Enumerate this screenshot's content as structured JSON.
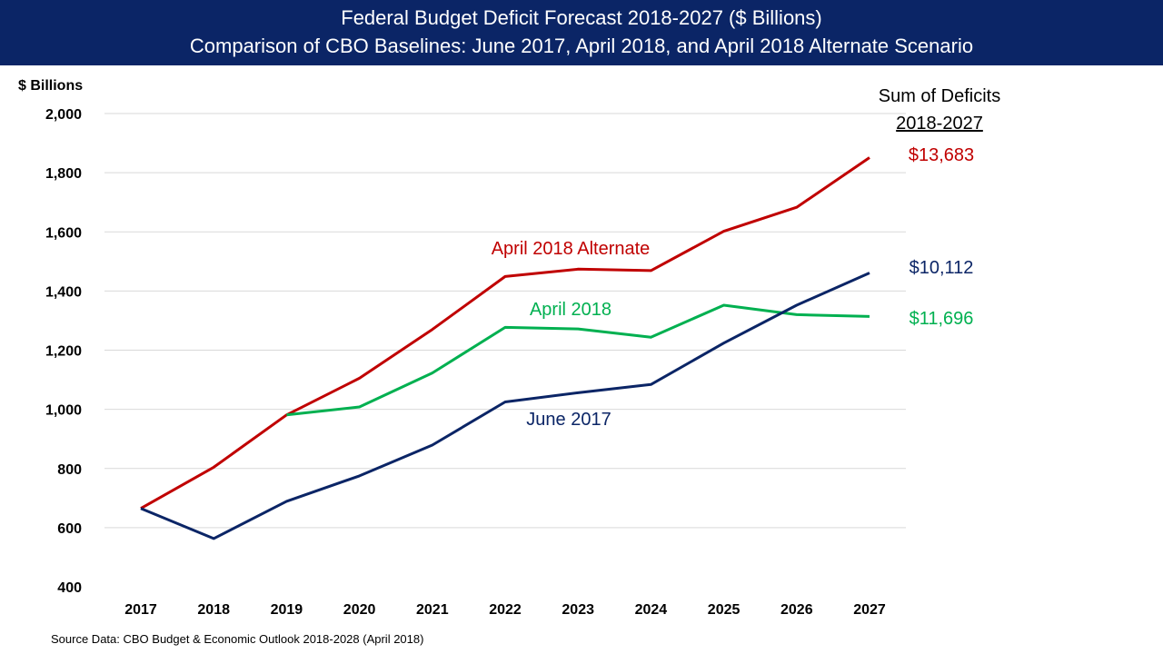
{
  "header": {
    "title_line1": "Federal Budget Deficit Forecast 2018-2027 ($ Billions)",
    "title_line2": "Comparison of CBO Baselines:  June 2017, April 2018, and April 2018 Alternate Scenario",
    "background_color": "#0b2566"
  },
  "sum_box": {
    "line1": "Sum of Deficits",
    "line2": "2018-2027"
  },
  "source_note": "Source Data:  CBO Budget & Economic Outlook 2018-2028 (April 2018)",
  "chart_data": {
    "type": "line",
    "title": "Federal Budget Deficit Forecast 2018-2027 ($ Billions)",
    "subtitle": "Comparison of CBO Baselines:  June 2017, April 2018, and April 2018 Alternate Scenario",
    "xlabel": "",
    "ylabel": "$ Billions",
    "ylim": [
      400,
      2000
    ],
    "yticks": [
      400,
      600,
      800,
      1000,
      1200,
      1400,
      1600,
      1800,
      2000
    ],
    "ytick_labels": [
      "400",
      "600",
      "800",
      "1,000",
      "1,200",
      "1,400",
      "1,600",
      "1,800",
      "2,000"
    ],
    "grid": "horizontal",
    "x": [
      "2017",
      "2018",
      "2019",
      "2020",
      "2021",
      "2022",
      "2023",
      "2024",
      "2025",
      "2026",
      "2027"
    ],
    "series": [
      {
        "name": "April 2018 Alternate",
        "color": "#c00000",
        "start_index": 0,
        "values": [
          665,
          804,
          981,
          1105,
          1270,
          1449,
          1474,
          1469,
          1602,
          1683,
          1851
        ],
        "sum_label": "$13,683"
      },
      {
        "name": "April 2018",
        "color": "#00b050",
        "start_index": 2,
        "values": [
          981,
          1008,
          1123,
          1277,
          1272,
          1244,
          1352,
          1320,
          1314
        ],
        "sum_label": "$11,696"
      },
      {
        "name": "June 2017",
        "color": "#0b2566",
        "start_index": 0,
        "values": [
          665,
          563,
          689,
          775,
          879,
          1025,
          1056,
          1084,
          1224,
          1352,
          1461
        ],
        "sum_label": "$10,112"
      }
    ]
  }
}
